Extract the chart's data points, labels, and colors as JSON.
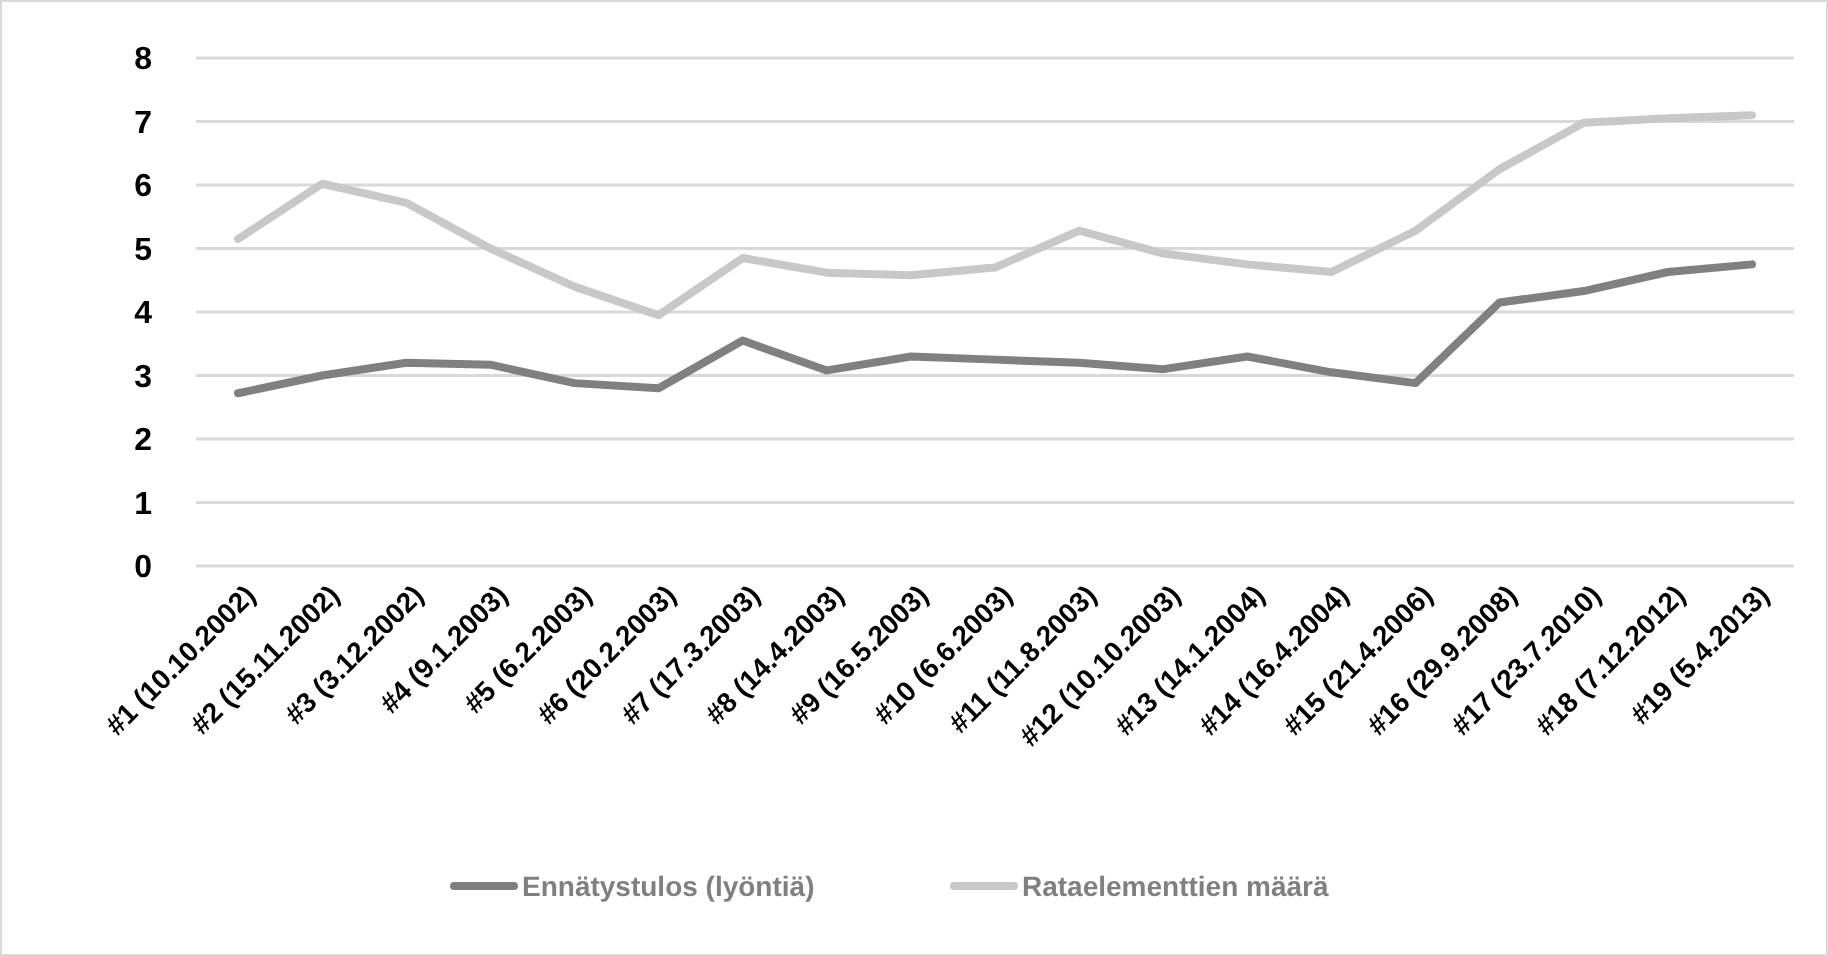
{
  "chart_data": {
    "type": "line",
    "categories": [
      "#1 (10.10.2002)",
      "#2 (15.11.2002)",
      "#3 (3.12.2002)",
      "#4 (9.1.2003)",
      "#5 (6.2.2003)",
      "#6 (20.2.2003)",
      "#7 (17.3.2003)",
      "#8 (14.4.2003)",
      "#9 (16.5.2003)",
      "#10 (6.6.2003)",
      "#11 (11.8.2003)",
      "#12 (10.10.2003)",
      "#13 (14.1.2004)",
      "#14 (16.4.2004)",
      "#15 (21.4.2006)",
      "#16 (29.9.2008)",
      "#17 (23.7.2010)",
      "#18 (7.12.2012)",
      "#19 (5.4.2013)"
    ],
    "series": [
      {
        "name": "Ennätystulos (lyöntiä)",
        "color": "#808080",
        "values": [
          2.72,
          3.0,
          3.2,
          3.17,
          2.88,
          2.8,
          3.55,
          3.08,
          3.3,
          3.25,
          3.2,
          3.1,
          3.3,
          3.05,
          2.88,
          4.15,
          4.33,
          4.63,
          4.75
        ]
      },
      {
        "name": "Rataelementtien määrä",
        "color": "#c8c8c8",
        "values": [
          5.15,
          6.02,
          5.72,
          5.0,
          4.4,
          3.95,
          4.85,
          4.62,
          4.58,
          4.7,
          5.28,
          4.92,
          4.75,
          4.63,
          5.28,
          6.25,
          6.98,
          7.05,
          7.1
        ]
      }
    ],
    "ylim": [
      0,
      8
    ],
    "yticks": [
      0,
      1,
      2,
      3,
      4,
      5,
      6,
      7,
      8
    ],
    "grid": "y",
    "legend": "bottom",
    "marker": "none",
    "line_style": "solid"
  }
}
